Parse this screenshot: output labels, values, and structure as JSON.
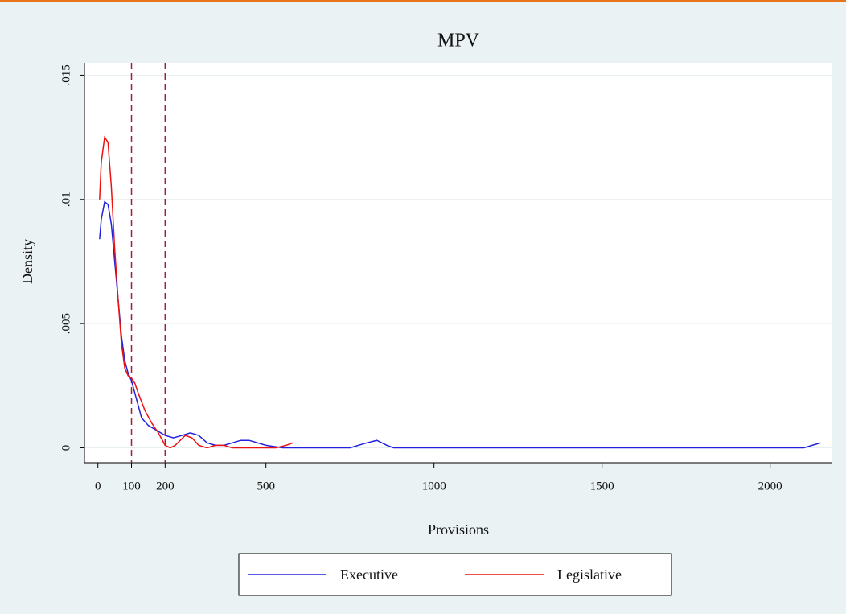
{
  "chart_data": {
    "type": "line",
    "title": "MPV",
    "x_label": "Provisions",
    "y_label": "Density",
    "xlim": [
      -40,
      2185
    ],
    "ylim": [
      -0.0006,
      0.0155
    ],
    "xticks": [
      0,
      100,
      200,
      500,
      1000,
      1500,
      2000
    ],
    "yticks": [
      0,
      {
        "value": 0.005,
        "label": ".005"
      },
      {
        "value": 0.01,
        "label": ".01"
      },
      {
        "value": 0.015,
        "label": ".015"
      }
    ],
    "grid": true,
    "reference_lines": [
      100,
      200
    ],
    "reference_color": "#a0203a",
    "legend": "bottom",
    "series": [
      {
        "name": "Executive",
        "color": "#2222dd",
        "x": [
          5,
          10,
          20,
          30,
          40,
          50,
          60,
          70,
          80,
          90,
          100,
          110,
          120,
          130,
          150,
          175,
          200,
          225,
          250,
          275,
          300,
          325,
          350,
          375,
          400,
          425,
          450,
          500,
          550,
          600,
          750,
          800,
          830,
          860,
          880,
          2100,
          2150
        ],
        "values": [
          0.0084,
          0.0092,
          0.0099,
          0.0098,
          0.009,
          0.0075,
          0.006,
          0.0045,
          0.0035,
          0.003,
          0.0027,
          0.0022,
          0.0017,
          0.0012,
          0.0009,
          0.0007,
          0.0005,
          0.0004,
          0.0005,
          0.0006,
          0.0005,
          0.0002,
          0.0001,
          0.0001,
          0.0002,
          0.0003,
          0.0003,
          0.0001,
          0,
          0,
          0,
          0.0002,
          0.0003,
          0.0001,
          0,
          0,
          0.0002
        ]
      },
      {
        "name": "Legislative",
        "color": "#ee1111",
        "x": [
          5,
          10,
          20,
          30,
          40,
          50,
          60,
          70,
          80,
          90,
          100,
          110,
          120,
          140,
          160,
          180,
          200,
          215,
          230,
          260,
          280,
          300,
          325,
          350,
          375,
          400,
          450,
          500,
          530,
          560,
          580
        ],
        "values": [
          0.01,
          0.0115,
          0.0125,
          0.0123,
          0.0105,
          0.008,
          0.006,
          0.0042,
          0.0032,
          0.0029,
          0.0028,
          0.0026,
          0.0022,
          0.0015,
          0.001,
          0.0006,
          0.0001,
          0,
          0.0001,
          0.0005,
          0.0004,
          0.0001,
          0,
          0.0001,
          0.0001,
          0,
          0,
          0,
          0,
          0.0001,
          0.0002
        ]
      }
    ]
  }
}
